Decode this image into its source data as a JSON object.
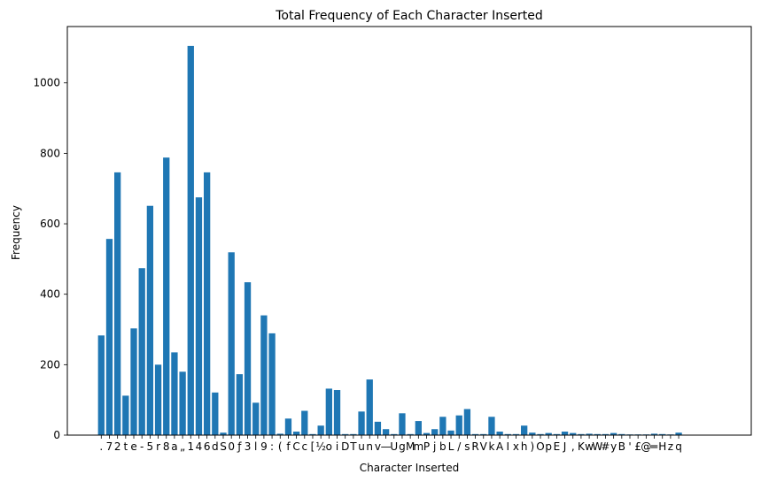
{
  "chart_data": {
    "type": "bar",
    "title": "Total Frequency of Each Character Inserted",
    "xlabel": "Character Inserted",
    "ylabel": "Frequency",
    "ylim": [
      0,
      1160
    ],
    "yticks": [
      0,
      200,
      400,
      600,
      800,
      1000
    ],
    "grid": false,
    "bar_color": "#1f77b4",
    "categories": [
      ".",
      "7",
      "2",
      "t",
      "e",
      "-",
      "5",
      "r",
      "8",
      "a",
      "„",
      "1",
      "4",
      "6",
      "d",
      "S",
      "0",
      "ƒ",
      "3",
      "l",
      "9",
      ":",
      "(",
      "f",
      "C",
      "c",
      "[",
      "½",
      "o",
      "i",
      "D",
      "T",
      "u",
      "n",
      "v",
      "—",
      "U",
      "g",
      "M",
      "m",
      "P",
      "j",
      "b",
      "L",
      "/",
      "s",
      "R",
      "V",
      "k",
      "A",
      "I",
      "x",
      "h",
      ")",
      "O",
      "p",
      "E",
      "J",
      ",",
      "K",
      "w",
      "W",
      "#",
      "y",
      "B",
      "'",
      "£",
      "@",
      "═",
      "H",
      "z",
      "q"
    ],
    "values": [
      283,
      557,
      746,
      112,
      303,
      474,
      651,
      200,
      788,
      235,
      180,
      1105,
      675,
      746,
      121,
      7,
      519,
      173,
      434,
      92,
      340,
      289,
      4,
      47,
      10,
      69,
      3,
      27,
      132,
      128,
      3,
      3,
      67,
      158,
      38,
      17,
      3,
      62,
      3,
      40,
      6,
      17,
      52,
      13,
      56,
      74,
      3,
      3,
      52,
      10,
      3,
      3,
      27,
      7,
      3,
      6,
      3,
      10,
      6,
      3,
      4,
      3,
      3,
      6,
      3,
      2,
      2,
      2,
      4,
      3,
      2,
      7
    ]
  }
}
